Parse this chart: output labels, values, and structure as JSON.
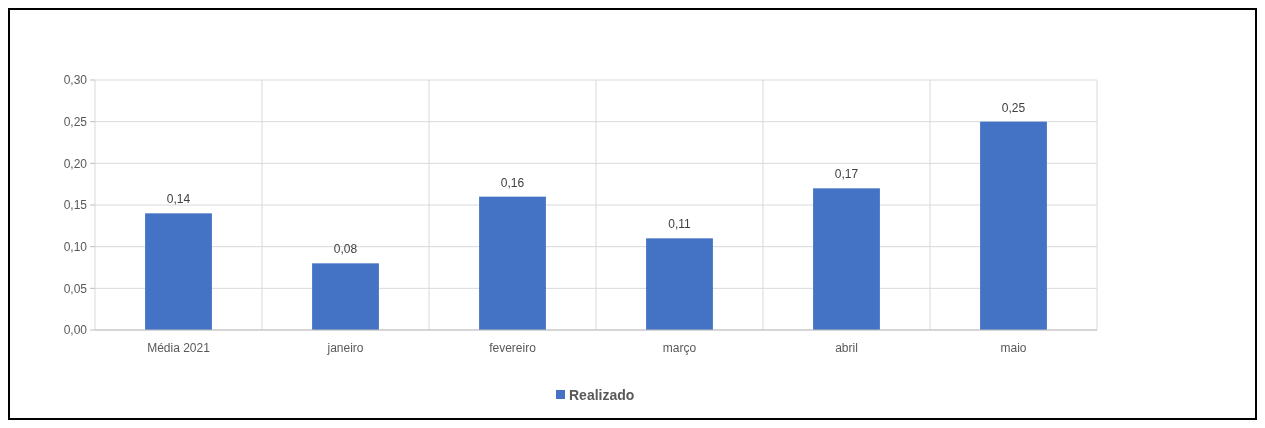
{
  "chart_data": {
    "type": "bar",
    "categories": [
      "Média 2021",
      "janeiro",
      "fevereiro",
      "março",
      "abril",
      "maio"
    ],
    "series": [
      {
        "name": "Realizado",
        "color": "#4472c4",
        "values": [
          0.14,
          0.08,
          0.16,
          0.11,
          0.17,
          0.25
        ],
        "value_labels": [
          "0,14",
          "0,08",
          "0,16",
          "0,11",
          "0,17",
          "0,25"
        ]
      }
    ],
    "ylim": [
      0,
      0.3
    ],
    "yticks": [
      {
        "value": 0,
        "label": "0,00"
      },
      {
        "value": 0.05,
        "label": "0,05"
      },
      {
        "value": 0.1,
        "label": "0,10"
      },
      {
        "value": 0.15,
        "label": "0,15"
      },
      {
        "value": 0.2,
        "label": "0,20"
      },
      {
        "value": 0.25,
        "label": "0,25"
      },
      {
        "value": 0.3,
        "label": "0,30"
      }
    ],
    "grid": true,
    "legend": "bottom"
  }
}
